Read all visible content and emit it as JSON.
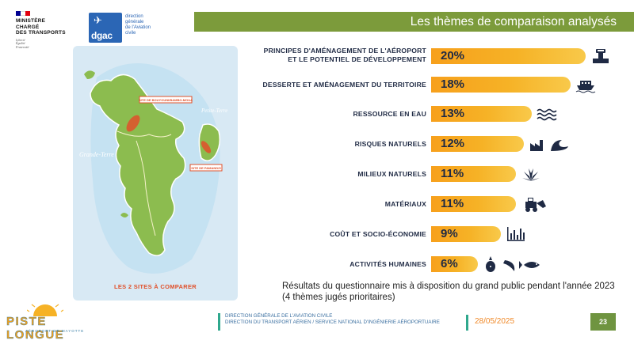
{
  "header": {
    "ministry_lines": [
      "MINISTÈRE",
      "CHARGÉ",
      "DES TRANSPORTS"
    ],
    "motto_lines": [
      "Liberté",
      "Égalité",
      "Fraternité"
    ],
    "dgac_word": "dgac",
    "dgac_desc_lines": [
      "direction",
      "générale",
      "de l'Aviation",
      "civile"
    ],
    "title": "Les thèmes de comparaison analysés",
    "colors": {
      "banner": "#7c9b3b",
      "flag_blue": "#000091",
      "flag_red": "#e1000f",
      "dgac_blue": "#2b66b5"
    }
  },
  "map": {
    "labels": {
      "petite_terre": "Petite-Terre",
      "grande_terre": "Grande-Terre",
      "site1": "SITE DE BOUYOUNI/BAMBO-MOUA",
      "site2": "SITE DE PAMANDZI"
    },
    "caption": "LES 2 SITES À COMPARER"
  },
  "themes": [
    {
      "label_lines": [
        "PRINCIPES D'AMÉNAGEMENT DE L'AÉROPORT",
        "ET LE POTENTIEL DE DÉVELOPPEMENT"
      ],
      "value": "20%",
      "percent": 20,
      "icon": "airport-tower-icon"
    },
    {
      "label_lines": [
        "DESSERTE ET AMÉNAGEMENT DU TERRITOIRE"
      ],
      "value": "18%",
      "percent": 18,
      "icon": "ferry-icon"
    },
    {
      "label_lines": [
        "RESSOURCE EN EAU"
      ],
      "value": "13%",
      "percent": 13,
      "icon": "water-waves-icon"
    },
    {
      "label_lines": [
        "RISQUES NATURELS"
      ],
      "value": "12%",
      "percent": 12,
      "icon": "factory-wave-icon"
    },
    {
      "label_lines": [
        "MILIEUX NATURELS"
      ],
      "value": "11%",
      "percent": 11,
      "icon": "plant-icon"
    },
    {
      "label_lines": [
        "MATÉRIAUX"
      ],
      "value": "11%",
      "percent": 11,
      "icon": "bulldozer-icon"
    },
    {
      "label_lines": [
        "COÛT ET SOCIO-ÉCONOMIE"
      ],
      "value": "9%",
      "percent": 9,
      "icon": "bar-chart-icon"
    },
    {
      "label_lines": [
        "ACTIVITÉS HUMAINES"
      ],
      "value": "6%",
      "percent": 6,
      "icon": "fruit-fish-icon"
    }
  ],
  "note": "Résultats du questionnaire mis à disposition du grand public pendant l'année 2023 (4 thèmes jugés prioritaires)",
  "footer": {
    "brand_name": "PISTE LONGUE",
    "brand_sub": "AÉROPORT DE MAYOTTE",
    "org_lines": [
      "DIRECTION GÉNÉRALE DE L'AVIATION CIVILE",
      "DIRECTION DU TRANSPORT AÉRIEN / SERVICE NATIONAL D'INGÉNIERIE AÉROPORTUAIRE"
    ],
    "date": "28/05/2025",
    "page": "23"
  },
  "colors": {
    "bar": "#f6a521",
    "accent_green": "#6f9440",
    "teal": "#2fa88d",
    "text_navy": "#1f2a44"
  }
}
